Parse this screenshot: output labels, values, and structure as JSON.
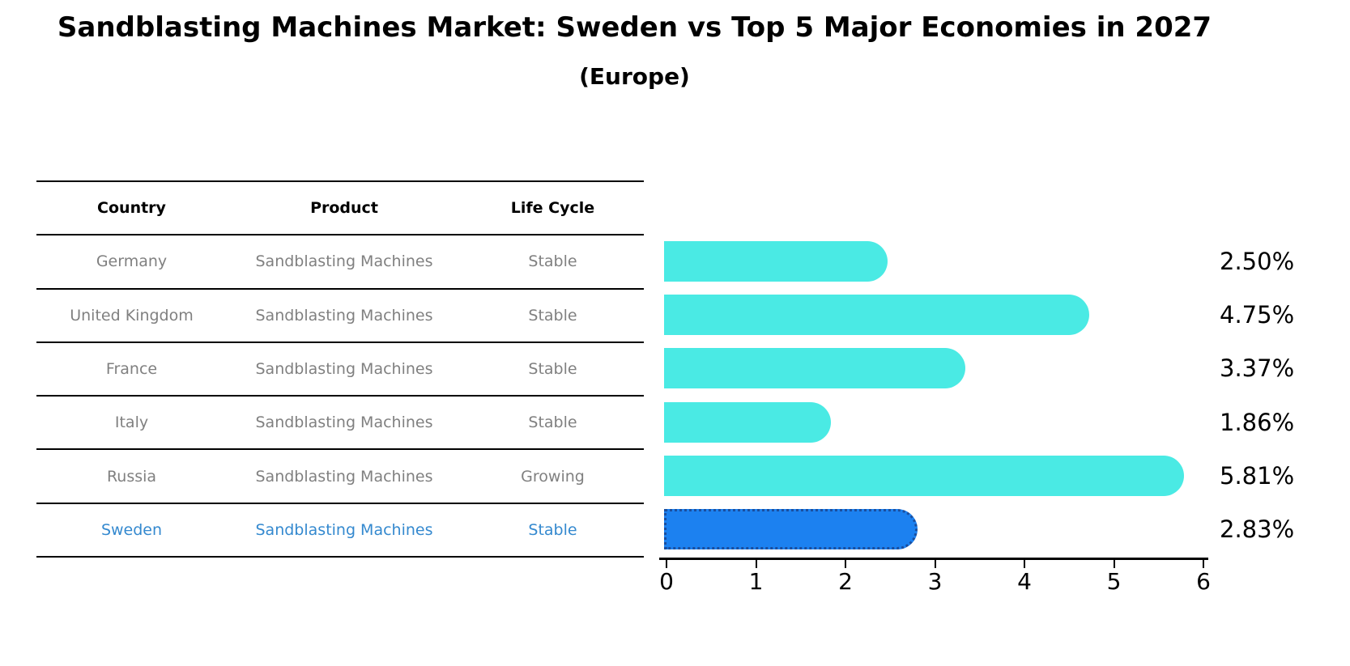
{
  "title": {
    "text": "Sandblasting Machines Market: Sweden vs Top 5 Major Economies in 2027",
    "subtitle": "(Europe)"
  },
  "table": {
    "headers": [
      "Country",
      "Product",
      "Life Cycle"
    ],
    "rows": [
      {
        "country": "Germany",
        "product": "Sandblasting Machines",
        "life_cycle": "Stable",
        "highlighted": false
      },
      {
        "country": "United Kingdom",
        "product": "Sandblasting Machines",
        "life_cycle": "Stable",
        "highlighted": false
      },
      {
        "country": "France",
        "product": "Sandblasting Machines",
        "life_cycle": "Stable",
        "highlighted": false
      },
      {
        "country": "Italy",
        "product": "Sandblasting Machines",
        "life_cycle": "Stable",
        "highlighted": false
      },
      {
        "country": "Russia",
        "product": "Sandblasting Machines",
        "life_cycle": "Growing",
        "highlighted": false
      },
      {
        "country": "Sweden",
        "product": "Sandblasting Machines",
        "life_cycle": "Stable",
        "highlighted": true
      }
    ]
  },
  "chart_data": {
    "type": "bar",
    "orientation": "horizontal",
    "title": "Sandblasting Machines Market: Sweden vs Top 5 Major Economies in 2027 (Europe)",
    "categories": [
      "Germany",
      "United Kingdom",
      "France",
      "Italy",
      "Russia",
      "Sweden"
    ],
    "values": [
      2.5,
      4.75,
      3.37,
      1.86,
      5.81,
      2.83
    ],
    "value_labels": [
      "2.50%",
      "4.75%",
      "3.37%",
      "1.86%",
      "5.81%",
      "2.83%"
    ],
    "highlighted_category": "Sweden",
    "xlim": [
      0,
      6
    ],
    "xticks": [
      "0",
      "1",
      "2",
      "3",
      "4",
      "5",
      "6"
    ],
    "grid": false,
    "legend": false,
    "colors": {
      "bar": "#4AEAE4",
      "highlight_bar": "#1C81F0",
      "highlight_border": "#1A4E9E",
      "highlight_text": "#3489CF",
      "cell_text": "#808080",
      "label_text": "#000000"
    }
  }
}
